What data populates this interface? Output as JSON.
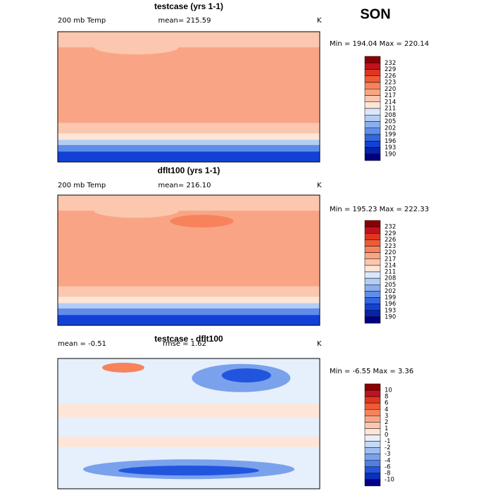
{
  "title": "SON",
  "panels": [
    {
      "title": "testcase (yrs 1-1)",
      "variable": "200 mb Temp",
      "stat": "mean= 215.59",
      "units": "K",
      "range": "Min = 194.04 Max = 220.14",
      "colorbar": [
        232,
        229,
        226,
        223,
        220,
        217,
        214,
        211,
        208,
        205,
        202,
        199,
        196,
        193,
        190
      ]
    },
    {
      "title": "dflt100 (yrs 1-1)",
      "variable": "200 mb Temp",
      "stat": "mean= 216.10",
      "units": "K",
      "range": "Min = 195.23 Max = 222.33",
      "colorbar": [
        232,
        229,
        226,
        223,
        220,
        217,
        214,
        211,
        208,
        205,
        202,
        199,
        196,
        193,
        190
      ]
    },
    {
      "title": "testcase - dflt100",
      "variable": "mean =   -0.51",
      "stat": "rmse =    1.62",
      "units": "K",
      "range": "Min =  -6.55 Max =   3.36",
      "colorbar": [
        10,
        8,
        6,
        4,
        3,
        2,
        1,
        0,
        -1,
        -2,
        -3,
        -4,
        -6,
        -8,
        -10
      ]
    }
  ]
}
